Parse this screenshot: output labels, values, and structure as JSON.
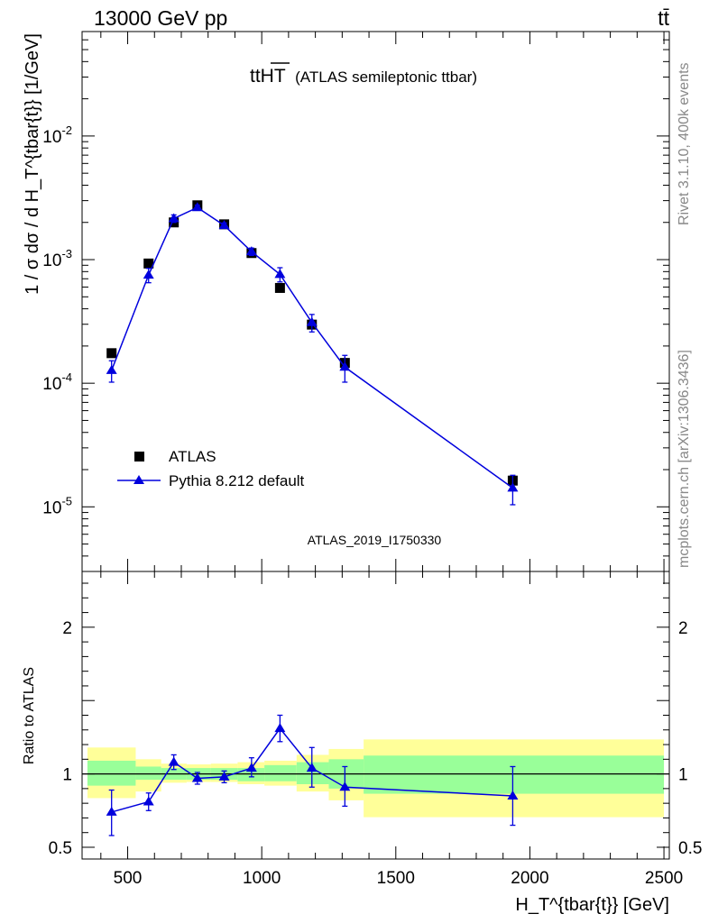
{
  "header": {
    "left": "13000 GeV pp",
    "right": "tt̄"
  },
  "side": {
    "rivet": "Rivet 3.1.10,  400k events",
    "mcplots": "mcplots.cern.ch [arXiv:1306.3436]"
  },
  "plot_title": {
    "main": "ttHT",
    "sub": "(ATLAS semileptonic ttbar)"
  },
  "analysis_id": "ATLAS_2019_I1750330",
  "legend": [
    {
      "label": "ATLAS",
      "marker": "square",
      "color": "#000000"
    },
    {
      "label": "Pythia 8.212 default",
      "marker": "triangle",
      "color": "#0000dd"
    }
  ],
  "colors": {
    "data": "#000000",
    "mc": "#0000dd",
    "band_inner": "#99ff99",
    "band_outer": "#ffff99"
  },
  "chart_data": [
    {
      "type": "scatter",
      "yscale": "log",
      "ylabel": "1 / σ dσ / d H_T^{tbar{t}} [1/GeV]",
      "xlim": [
        330,
        2520
      ],
      "ylim": [
        3e-06,
        0.07
      ],
      "yticks": [
        "10^{-5}",
        "10^{-4}",
        "10^{-3}",
        "10^{-2}"
      ],
      "series": [
        {
          "name": "ATLAS",
          "x": [
            440,
            578,
            672,
            760,
            860,
            962,
            1068,
            1187,
            1310,
            1936
          ],
          "y": [
            0.000175,
            0.00093,
            0.002,
            0.00275,
            0.00193,
            0.00113,
            0.00059,
            0.000298,
            0.000146,
            1.63e-05
          ],
          "yerr_lo": [
            1.08e-05,
            4e-05,
            9e-05,
            0.00012,
            8e-05,
            4e-05,
            3e-05,
            3e-05,
            1.6e-05,
            1.2e-06
          ],
          "yerr_hi": [
            1.08e-05,
            4e-05,
            9e-05,
            0.00012,
            8e-05,
            4e-05,
            3e-05,
            3e-05,
            1.6e-05,
            1.2e-06
          ]
        },
        {
          "name": "Pythia 8.212 default",
          "x": [
            440,
            578,
            672,
            760,
            860,
            962,
            1068,
            1187,
            1310,
            1936
          ],
          "y": [
            0.000127,
            0.00075,
            0.00215,
            0.00264,
            0.00189,
            0.00116,
            0.00076,
            0.00031,
            0.000135,
            1.42e-05
          ],
          "yerr_lo": [
            2.5e-05,
            0.0001,
            0.00015,
            0.00012,
            9e-05,
            8e-05,
            0.0001,
            5e-05,
            3.3e-05,
            3.8e-06
          ],
          "yerr_hi": [
            2.5e-05,
            0.0001,
            0.00015,
            0.00012,
            9e-05,
            8e-05,
            0.0001,
            5e-05,
            3.3e-05,
            3.8e-06
          ]
        }
      ]
    },
    {
      "type": "line",
      "ylabel": "Ratio to ATLAS",
      "xlabel": "H_T^{tbar{t}} [GeV]",
      "xlim": [
        330,
        2520
      ],
      "ylim": [
        0.42,
        2.38
      ],
      "xticks": [
        500,
        1000,
        1500,
        2000,
        2500
      ],
      "yticks": [
        0.5,
        1,
        2
      ],
      "bands": {
        "edges": [
          350,
          530,
          625,
          720,
          810,
          910,
          1010,
          1130,
          1250,
          1380,
          2500
        ],
        "inner_lo": [
          0.92,
          0.96,
          0.96,
          0.96,
          0.96,
          0.95,
          0.95,
          0.93,
          0.9,
          0.865
        ],
        "inner_hi": [
          1.09,
          1.05,
          1.04,
          1.04,
          1.04,
          1.04,
          1.06,
          1.08,
          1.1,
          1.125
        ],
        "outer_lo": [
          0.835,
          0.88,
          0.94,
          0.945,
          0.945,
          0.93,
          0.92,
          0.88,
          0.82,
          0.705
        ],
        "outer_hi": [
          1.18,
          1.1,
          1.07,
          1.065,
          1.07,
          1.08,
          1.09,
          1.13,
          1.17,
          1.235
        ]
      },
      "series": [
        {
          "name": "Pythia 8.212 default",
          "x": [
            440,
            578,
            672,
            760,
            860,
            962,
            1068,
            1187,
            1310,
            1936
          ],
          "y": [
            0.74,
            0.81,
            1.08,
            0.97,
            0.98,
            1.04,
            1.31,
            1.04,
            0.91,
            0.85
          ],
          "yerr_lo": [
            0.16,
            0.06,
            0.05,
            0.04,
            0.04,
            0.06,
            0.09,
            0.13,
            0.13,
            0.2
          ],
          "yerr_hi": [
            0.15,
            0.06,
            0.05,
            0.04,
            0.04,
            0.07,
            0.09,
            0.14,
            0.14,
            0.2
          ]
        }
      ]
    }
  ]
}
